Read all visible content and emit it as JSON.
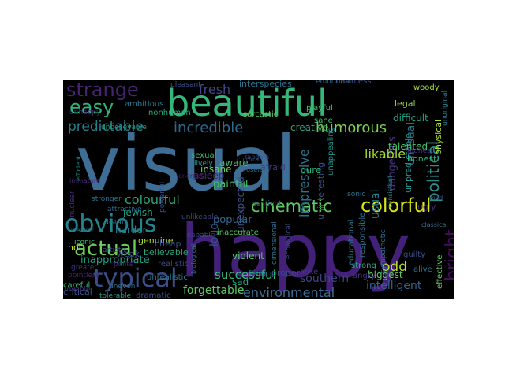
{
  "words": [
    {
      "id": "visual",
      "text": "visual",
      "color": "#3e6e96"
    },
    {
      "id": "happy",
      "text": "happy",
      "color": "#43217a"
    },
    {
      "id": "beautiful",
      "text": "beautiful",
      "color": "#35b779"
    },
    {
      "id": "strange",
      "text": "strange",
      "color": "#46246e"
    },
    {
      "id": "obvious",
      "text": "obvious",
      "color": "#26828e"
    },
    {
      "id": "typical",
      "text": "typical",
      "color": "#3b4f8a"
    },
    {
      "id": "actual",
      "text": "actual",
      "color": "#6cce59"
    },
    {
      "id": "colorful",
      "text": "colorful",
      "color": "#d7e21a"
    },
    {
      "id": "cinematic",
      "text": "cinematic",
      "color": "#5ec962"
    },
    {
      "id": "political",
      "text": "political",
      "color": "#2b8f8c"
    },
    {
      "id": "easy",
      "text": "easy",
      "color": "#2fb47c"
    },
    {
      "id": "predictable",
      "text": "predictable",
      "color": "#277f8e"
    },
    {
      "id": "incredible",
      "text": "incredible",
      "color": "#30698e"
    },
    {
      "id": "humorous",
      "text": "humorous",
      "color": "#7ad151"
    },
    {
      "id": "environmental",
      "text": "environmental",
      "color": "#3e6e96"
    },
    {
      "id": "successful",
      "text": "successful",
      "color": "#35b779"
    },
    {
      "id": "intelligent",
      "text": "intelligent",
      "color": "#33638d"
    },
    {
      "id": "bright",
      "text": "bright",
      "color": "#440d59"
    },
    {
      "id": "impressive",
      "text": "impressive",
      "color": "#2c728e"
    },
    {
      "id": "colourful",
      "text": "colourful",
      "color": "#2ea57f"
    },
    {
      "id": "fresh",
      "text": "fresh",
      "color": "#3f4889"
    },
    {
      "id": "painful",
      "text": "painful",
      "color": "#4ac16d"
    },
    {
      "id": "odd",
      "text": "odd",
      "color": "#bbdf27"
    },
    {
      "id": "dangerous",
      "text": "dangerous",
      "color": "#46337e"
    },
    {
      "id": "likable",
      "text": "likable",
      "color": "#a0da39"
    },
    {
      "id": "forgettable",
      "text": "forgettable",
      "color": "#5ec962"
    },
    {
      "id": "popular",
      "text": "popular",
      "color": "#31688e"
    },
    {
      "id": "inappropriate",
      "text": "inappropriate",
      "color": "#1fa187"
    },
    {
      "id": "southern",
      "text": "southern",
      "color": "#414487"
    },
    {
      "id": "creative",
      "text": "creative",
      "color": "#2ea37f"
    },
    {
      "id": "unpredictable",
      "text": "unpredictable",
      "color": "#21918c"
    },
    {
      "id": "usual",
      "text": "usual",
      "color": "#277f8e"
    },
    {
      "id": "biggest",
      "text": "biggest",
      "color": "#5ec962"
    },
    {
      "id": "loud",
      "text": "loud",
      "color": "#3b528b"
    },
    {
      "id": "sad",
      "text": "sad",
      "color": "#22a884"
    },
    {
      "id": "critical",
      "text": "critical",
      "color": "#3b528b"
    },
    {
      "id": "interspecies",
      "text": "interspecies",
      "color": "#2c728e"
    },
    {
      "id": "harmless",
      "text": "harmless",
      "color": "#3b528b"
    },
    {
      "id": "emotional",
      "text": "emotional",
      "color": "#30698e"
    },
    {
      "id": "jewish",
      "text": "jewish",
      "color": "#20a386"
    },
    {
      "id": "harder",
      "text": "harder",
      "color": "#25848e"
    },
    {
      "id": "genuine",
      "text": "genuine",
      "color": "#addc30"
    },
    {
      "id": "insane",
      "text": "insane",
      "color": "#6ece58"
    },
    {
      "id": "pure",
      "text": "pure",
      "color": "#2fb47c"
    },
    {
      "id": "talented",
      "text": "talented",
      "color": "#4ac16d"
    },
    {
      "id": "unusual",
      "text": "unusual",
      "color": "#2a788e"
    },
    {
      "id": "believable",
      "text": "believable",
      "color": "#2ea37f"
    },
    {
      "id": "cheap",
      "text": "cheap",
      "color": "#3b528b"
    },
    {
      "id": "realistic",
      "text": "realistic",
      "color": "#3f4889"
    },
    {
      "id": "hot",
      "text": "hot",
      "color": "#d0e11c"
    },
    {
      "id": "weak",
      "text": "weak",
      "color": "#3e4989"
    },
    {
      "id": "violent",
      "text": "violent",
      "color": "#56c667"
    },
    {
      "id": "unexpected",
      "text": "unexpected",
      "color": "#3b528b"
    },
    {
      "id": "proper",
      "text": "proper",
      "color": "#3e4989"
    },
    {
      "id": "uninteresting",
      "text": "uninteresting",
      "color": "#3e4989"
    },
    {
      "id": "unappealing",
      "text": "unappealing",
      "color": "#21918c"
    },
    {
      "id": "sarcastic",
      "text": "sarcastic",
      "color": "#5ec962"
    },
    {
      "id": "playful",
      "text": "playful",
      "color": "#46c06f"
    },
    {
      "id": "sane",
      "text": "sane",
      "color": "#46c06f"
    },
    {
      "id": "legal",
      "text": "legal",
      "color": "#90d743"
    },
    {
      "id": "woody",
      "text": "woody",
      "color": "#a5db36"
    },
    {
      "id": "difficult",
      "text": "difficult",
      "color": "#20a386"
    },
    {
      "id": "honest",
      "text": "honest",
      "color": "#31b57b"
    },
    {
      "id": "ugly",
      "text": "ugly",
      "color": "#472d7b"
    },
    {
      "id": "angry",
      "text": "angry",
      "color": "#46307e"
    },
    {
      "id": "strong",
      "text": "strong",
      "color": "#2ea37f"
    },
    {
      "id": "guilty",
      "text": "guilty",
      "color": "#3b528b"
    },
    {
      "id": "alive",
      "text": "alive",
      "color": "#2a788e"
    },
    {
      "id": "effective",
      "text": "effective",
      "color": "#65cb5e"
    },
    {
      "id": "physical",
      "text": "physical",
      "color": "#b2dd2d"
    },
    {
      "id": "responsible",
      "text": "responsible",
      "color": "#2c728e"
    },
    {
      "id": "ambitious",
      "text": "ambitious",
      "color": "#2a788e"
    },
    {
      "id": "unhappy",
      "text": "unhappy",
      "color": "#482878"
    },
    {
      "id": "nonhuman",
      "text": "nonhuman",
      "color": "#25ab82"
    },
    {
      "id": "unbelievable",
      "text": "unbelievable",
      "color": "#1fa187"
    },
    {
      "id": "stronger",
      "text": "stronger",
      "color": "#2c728e"
    },
    {
      "id": "distant",
      "text": "distant",
      "color": "#2c728e"
    },
    {
      "id": "sexual",
      "text": "sexual",
      "color": "#3fbc73"
    },
    {
      "id": "lively",
      "text": "lively",
      "color": "#1f9e89"
    },
    {
      "id": "aware",
      "text": "aware",
      "color": "#42be71"
    },
    {
      "id": "asleep",
      "text": "asleep",
      "color": "#482878"
    },
    {
      "id": "afraid",
      "text": "afraid",
      "color": "#443983"
    },
    {
      "id": "unlikeable",
      "text": "unlikeable",
      "color": "#3e4989"
    },
    {
      "id": "inaccurate",
      "text": "inaccurate",
      "color": "#56c667"
    },
    {
      "id": "capable",
      "text": "capable",
      "color": "#3e4989"
    },
    {
      "id": "attractive",
      "text": "attractive",
      "color": "#31688e"
    },
    {
      "id": "iconic",
      "text": "iconic",
      "color": "#3fbc73"
    },
    {
      "id": "pointless",
      "text": "pointless",
      "color": "#482475"
    },
    {
      "id": "careful",
      "text": "careful",
      "color": "#3aba76"
    },
    {
      "id": "lovable",
      "text": "lovable",
      "color": "#46307e"
    },
    {
      "id": "polite",
      "text": "polite",
      "color": "#482576"
    },
    {
      "id": "unrealistic",
      "text": "unrealistic",
      "color": "#2a788e"
    },
    {
      "id": "dramatic",
      "text": "dramatic",
      "color": "#3b528b"
    },
    {
      "id": "uneven",
      "text": "uneven",
      "color": "#2d708e"
    },
    {
      "id": "tolerable",
      "text": "tolerable",
      "color": "#1f9e89"
    },
    {
      "id": "greater",
      "text": "greater",
      "color": "#46307e"
    },
    {
      "id": "artistic",
      "text": "artistic",
      "color": "#3a548c"
    },
    {
      "id": "nuclear",
      "text": "nuclear",
      "color": "#46307e"
    },
    {
      "id": "weaker",
      "text": "weaker",
      "color": "#29798e"
    },
    {
      "id": "efficient",
      "text": "efficient",
      "color": "#21918c"
    },
    {
      "id": "immature",
      "text": "immature",
      "color": "#472a7a"
    },
    {
      "id": "pleasant",
      "text": "pleasant",
      "color": "#3b528b"
    },
    {
      "id": "random",
      "text": "random",
      "color": "#3b528b"
    },
    {
      "id": "useless",
      "text": "useless",
      "color": "#2c728e"
    },
    {
      "id": "energetic",
      "text": "energetic",
      "color": "#481b6d"
    },
    {
      "id": "sentient",
      "text": "sentient",
      "color": "#31688e"
    },
    {
      "id": "dimensional",
      "text": "dimensional",
      "color": "#2c728e"
    },
    {
      "id": "ecological",
      "text": "ecological",
      "color": "#3e4989"
    },
    {
      "id": "educational",
      "text": "educational",
      "color": "#29798e"
    },
    {
      "id": "sonic",
      "text": "sonic",
      "color": "#2c728e"
    },
    {
      "id": "alike",
      "text": "alike",
      "color": "#46307e"
    },
    {
      "id": "fewer",
      "text": "fewer",
      "color": "#21918c"
    },
    {
      "id": "biological",
      "text": "biological",
      "color": "#2a788e"
    },
    {
      "id": "powerful",
      "text": "powerful",
      "color": "#3a548c"
    },
    {
      "id": "sympathetic",
      "text": "sympathetic",
      "color": "#2c728e"
    },
    {
      "id": "highest",
      "text": "highest",
      "color": "#46307e"
    },
    {
      "id": "unoriginal",
      "text": "unoriginal",
      "color": "#27808e"
    },
    {
      "id": "classical",
      "text": "classical",
      "color": "#2c728e"
    },
    {
      "id": "mild",
      "text": "mild",
      "color": "#3b528b"
    },
    {
      "id": "consistent",
      "text": "consistent",
      "color": "#25848e"
    },
    {
      "id": "cultural",
      "text": "cultural",
      "color": "#3b528b"
    }
  ]
}
